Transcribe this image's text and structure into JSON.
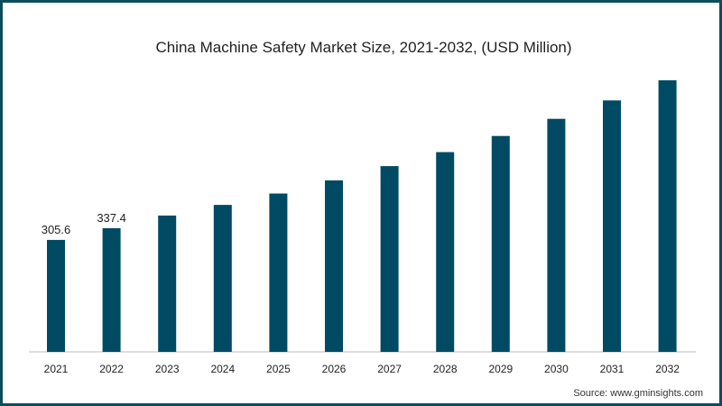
{
  "colors": {
    "bar": "#004b63",
    "border": "#0c4c5f",
    "axis": "#bdbdbd"
  },
  "chart_data": {
    "type": "bar",
    "title": "China Machine Safety Market Size, 2021-2032, (USD Million)",
    "xlabel": "",
    "ylabel": "",
    "categories": [
      "2021",
      "2022",
      "2023",
      "2024",
      "2025",
      "2026",
      "2027",
      "2028",
      "2029",
      "2030",
      "2031",
      "2032"
    ],
    "values": [
      305.6,
      337.4,
      372,
      401,
      432,
      468,
      507,
      545,
      589,
      636,
      686,
      741
    ],
    "data_labels": [
      "305.6",
      "337.4",
      "",
      "",
      "",
      "",
      "",
      "",
      "",
      "",
      "",
      ""
    ],
    "ylim": [
      0,
      741
    ],
    "grid": false,
    "legend": "none"
  },
  "footer": {
    "source": "Source: www.gminsights.com"
  }
}
